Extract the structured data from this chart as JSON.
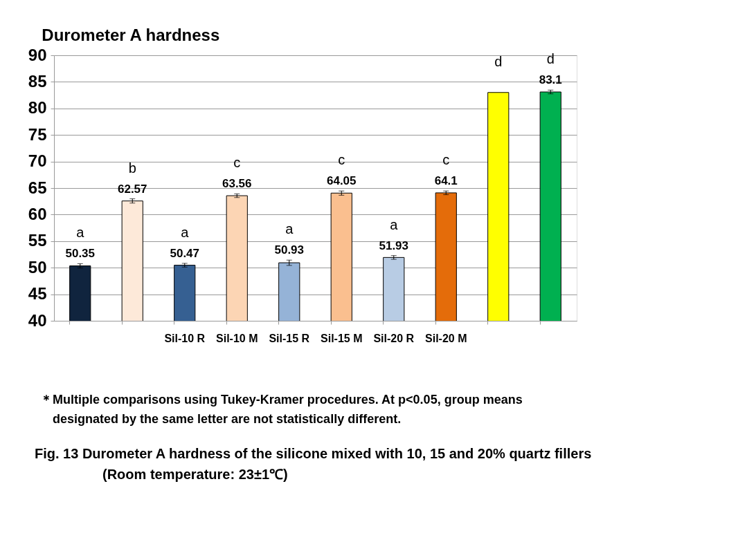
{
  "chart_data": {
    "type": "bar",
    "title": "Durometer A hardness",
    "categories": [
      null,
      null,
      "Sil-10 R",
      "Sil-10 M",
      "Sil-15 R",
      "Sil-15 M",
      "Sil-20 R",
      "Sil-20 M",
      null,
      null
    ],
    "values": [
      50.35,
      62.57,
      50.47,
      63.56,
      50.93,
      64.05,
      51.93,
      64.1,
      83.0,
      83.1
    ],
    "colors": [
      "#10243e",
      "#fde9d9",
      "#366092",
      "#fcd5b4",
      "#95b3d7",
      "#fabf8f",
      "#b8cce4",
      "#e46c0a",
      "#ffff00",
      "#00b050"
    ],
    "errors": [
      0.4,
      0.4,
      0.35,
      0.35,
      0.5,
      0.4,
      0.35,
      0.35,
      null,
      0.35
    ],
    "value_labels": [
      "50.35",
      "62.57",
      "50.47",
      "63.56",
      "50.93",
      "64.05",
      "51.93",
      "64.1",
      null,
      "83.1"
    ],
    "ylim": [
      40,
      90
    ],
    "yticks": [
      40,
      45,
      50,
      55,
      60,
      65,
      70,
      75,
      80,
      85,
      90
    ],
    "grid": "y",
    "annotations": [
      "a",
      "b",
      "a",
      "c",
      "a",
      "c",
      "a",
      "c",
      "d",
      "d",
      "＊Multiple comparisons using Tukey-Kramer procedures. At p<0.05, group means",
      "designated by the same letter are not statistically different.",
      "Fig. 13  Durometer A hardness of the silicone mixed with 10, 15 and 20% quartz fillers",
      "(Room temperature: 23±1℃)"
    ]
  }
}
